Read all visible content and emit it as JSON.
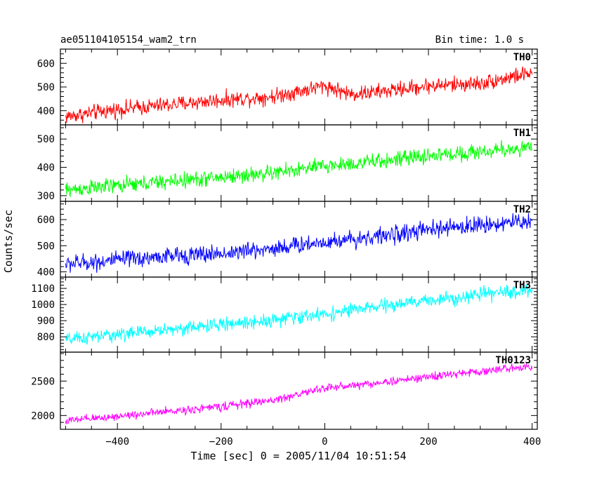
{
  "header": {
    "title": "ae051104105154_wam2_trn",
    "bin_time": "Bin time: 1.0 s"
  },
  "chart_data": {
    "type": "line",
    "title": "ae051104105154_wam2_trn",
    "subtitle": "Bin time: 1.0 s",
    "xlabel": "Time [sec] 0 = 2005/11/04 10:51:54",
    "ylabel": "Counts/sec",
    "xlim": [
      -510,
      410
    ],
    "x_ticks": [
      -400,
      -200,
      0,
      200,
      400
    ],
    "grid": false,
    "panels": [
      {
        "name": "TH0",
        "color": "#ff0000",
        "ylim": [
          340,
          660
        ],
        "y_ticks": [
          400,
          500,
          600
        ],
        "x": [
          -500,
          -400,
          -300,
          -200,
          -100,
          0,
          50,
          100,
          200,
          300,
          400
        ],
        "y": [
          375,
          405,
          425,
          445,
          460,
          505,
          470,
          478,
          505,
          515,
          560
        ],
        "noise": 30
      },
      {
        "name": "TH1",
        "color": "#00ff00",
        "ylim": [
          280,
          550
        ],
        "y_ticks": [
          300,
          400,
          500
        ],
        "x": [
          -500,
          -400,
          -300,
          -200,
          -100,
          0,
          100,
          200,
          300,
          400
        ],
        "y": [
          320,
          335,
          350,
          365,
          380,
          405,
          420,
          440,
          455,
          470
        ],
        "noise": 25
      },
      {
        "name": "TH2",
        "color": "#0000ff",
        "ylim": [
          380,
          670
        ],
        "y_ticks": [
          400,
          500,
          600
        ],
        "x": [
          -500,
          -400,
          -300,
          -200,
          -100,
          0,
          100,
          200,
          300,
          400
        ],
        "y": [
          430,
          445,
          460,
          470,
          490,
          515,
          535,
          560,
          580,
          595
        ],
        "noise": 30
      },
      {
        "name": "TH3",
        "color": "#00ffff",
        "ylim": [
          705,
          1170
        ],
        "y_ticks": [
          800,
          900,
          1000,
          1100
        ],
        "x": [
          -500,
          -400,
          -300,
          -200,
          -100,
          0,
          100,
          200,
          300,
          400
        ],
        "y": [
          780,
          815,
          845,
          875,
          905,
          940,
          985,
          1025,
          1060,
          1090
        ],
        "noise": 38
      },
      {
        "name": "TH0123",
        "color": "#ff00ff",
        "ylim": [
          1800,
          2920
        ],
        "y_ticks": [
          2000,
          2500
        ],
        "x": [
          -500,
          -400,
          -300,
          -200,
          -100,
          0,
          100,
          200,
          300,
          400
        ],
        "y": [
          1920,
          1990,
          2060,
          2130,
          2220,
          2400,
          2470,
          2560,
          2640,
          2720
        ],
        "noise": 55
      }
    ]
  }
}
